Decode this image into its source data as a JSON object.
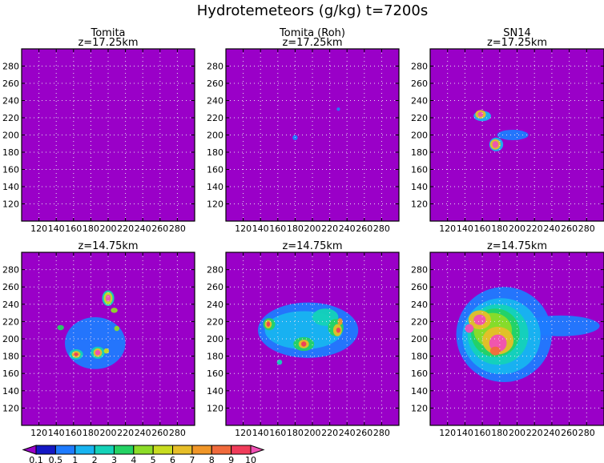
{
  "title": "Hydrotemeteors (g/kg) t=7200s",
  "colors": {
    "background": "#9a00c8",
    "grid": "#e8e0f0",
    "frame": "#000000",
    "text": "#000000"
  },
  "chart_data": [
    {
      "type": "heatmap",
      "scheme": "Tomita",
      "column_title": "Tomita",
      "level": "z=17.25km",
      "xlim": [
        100,
        300
      ],
      "ylim": [
        100,
        300
      ],
      "xticks": [
        120,
        140,
        160,
        180,
        200,
        220,
        240,
        260,
        280
      ],
      "yticks": [
        120,
        140,
        160,
        180,
        200,
        220,
        240,
        260,
        280
      ],
      "grid": true,
      "blobs": []
    },
    {
      "type": "heatmap",
      "scheme": "Tomita (Roh)",
      "column_title": "Tomita (Roh)",
      "level": "z=17.25km",
      "xlim": [
        100,
        300
      ],
      "ylim": [
        100,
        300
      ],
      "xticks": [
        120,
        140,
        160,
        180,
        200,
        220,
        240,
        260,
        280
      ],
      "yticks": [
        120,
        140,
        160,
        180,
        200,
        220,
        240,
        260,
        280
      ],
      "grid": true,
      "blobs": [
        {
          "x": 180,
          "y": 197,
          "rx": 3,
          "ry": 3,
          "value": 0.5
        },
        {
          "x": 230,
          "y": 230,
          "rx": 2,
          "ry": 2,
          "value": 0.5
        }
      ]
    },
    {
      "type": "heatmap",
      "scheme": "SN14",
      "column_title": "SN14",
      "level": "z=17.25km",
      "xlim": [
        100,
        300
      ],
      "ylim": [
        100,
        300
      ],
      "xticks": [
        120,
        140,
        160,
        180,
        200,
        220,
        240,
        260,
        280
      ],
      "yticks": [
        120,
        140,
        160,
        180,
        200,
        220,
        240,
        260,
        280
      ],
      "grid": true,
      "blobs": [
        {
          "x": 160,
          "y": 222,
          "rx": 10,
          "ry": 6,
          "value": 1
        },
        {
          "x": 158,
          "y": 224,
          "rx": 6,
          "ry": 5,
          "value": 6
        },
        {
          "x": 158,
          "y": 224,
          "rx": 3,
          "ry": 3,
          "value": 10
        },
        {
          "x": 176,
          "y": 189,
          "rx": 8,
          "ry": 8,
          "value": 1
        },
        {
          "x": 175,
          "y": 189,
          "rx": 6,
          "ry": 6,
          "value": 6
        },
        {
          "x": 175,
          "y": 189,
          "rx": 3.5,
          "ry": 4,
          "value": 10
        },
        {
          "x": 195,
          "y": 200,
          "rx": 18,
          "ry": 6,
          "value": 0.5
        }
      ]
    },
    {
      "type": "heatmap",
      "scheme": "Tomita",
      "level": "z=14.75km",
      "xlim": [
        100,
        300
      ],
      "ylim": [
        100,
        300
      ],
      "xticks": [
        120,
        140,
        160,
        180,
        200,
        220,
        240,
        260,
        280
      ],
      "yticks": [
        120,
        140,
        160,
        180,
        200,
        220,
        240,
        260,
        280
      ],
      "grid": true,
      "blobs": [
        {
          "x": 185,
          "y": 195,
          "rx": 35,
          "ry": 30,
          "value": 0.5
        },
        {
          "x": 200,
          "y": 247,
          "rx": 7,
          "ry": 9,
          "value": 2
        },
        {
          "x": 200,
          "y": 247,
          "rx": 5,
          "ry": 7,
          "value": 5
        },
        {
          "x": 200,
          "y": 247,
          "rx": 3,
          "ry": 4,
          "value": 10
        },
        {
          "x": 207,
          "y": 233,
          "rx": 4,
          "ry": 3,
          "value": 4
        },
        {
          "x": 210,
          "y": 212,
          "rx": 3,
          "ry": 3,
          "value": 4
        },
        {
          "x": 145,
          "y": 213,
          "rx": 4,
          "ry": 3,
          "value": 3
        },
        {
          "x": 163,
          "y": 182,
          "rx": 8,
          "ry": 6,
          "value": 2
        },
        {
          "x": 163,
          "y": 182,
          "rx": 5,
          "ry": 4,
          "value": 6
        },
        {
          "x": 163,
          "y": 182,
          "rx": 2.5,
          "ry": 2,
          "value": 9
        },
        {
          "x": 188,
          "y": 184,
          "rx": 8,
          "ry": 7,
          "value": 2
        },
        {
          "x": 188,
          "y": 184,
          "rx": 5,
          "ry": 5,
          "value": 6
        },
        {
          "x": 188,
          "y": 184,
          "rx": 3,
          "ry": 3,
          "value": 10
        },
        {
          "x": 198,
          "y": 186,
          "rx": 3,
          "ry": 3,
          "value": 5
        }
      ]
    },
    {
      "type": "heatmap",
      "scheme": "Tomita (Roh)",
      "level": "z=14.75km",
      "xlim": [
        100,
        300
      ],
      "ylim": [
        100,
        300
      ],
      "xticks": [
        120,
        140,
        160,
        180,
        200,
        220,
        240,
        260,
        280
      ],
      "yticks": [
        120,
        140,
        160,
        180,
        200,
        220,
        240,
        260,
        280
      ],
      "grid": true,
      "blobs": [
        {
          "x": 195,
          "y": 210,
          "rx": 58,
          "ry": 32,
          "value": 0.5
        },
        {
          "x": 190,
          "y": 210,
          "rx": 45,
          "ry": 22,
          "value": 1
        },
        {
          "x": 215,
          "y": 225,
          "rx": 15,
          "ry": 10,
          "value": 2
        },
        {
          "x": 150,
          "y": 217,
          "rx": 7,
          "ry": 7,
          "value": 3
        },
        {
          "x": 149,
          "y": 217,
          "rx": 4,
          "ry": 5,
          "value": 6
        },
        {
          "x": 149,
          "y": 217,
          "rx": 2,
          "ry": 3,
          "value": 9
        },
        {
          "x": 190,
          "y": 194,
          "rx": 12,
          "ry": 8,
          "value": 3
        },
        {
          "x": 190,
          "y": 194,
          "rx": 6,
          "ry": 5,
          "value": 6
        },
        {
          "x": 190,
          "y": 194,
          "rx": 3,
          "ry": 3,
          "value": 9
        },
        {
          "x": 227,
          "y": 213,
          "rx": 9,
          "ry": 10,
          "value": 3
        },
        {
          "x": 229,
          "y": 210,
          "rx": 5,
          "ry": 7,
          "value": 6
        },
        {
          "x": 230,
          "y": 210,
          "rx": 2.5,
          "ry": 3,
          "value": 9
        },
        {
          "x": 232,
          "y": 220,
          "rx": 3,
          "ry": 4,
          "value": 7
        },
        {
          "x": 162,
          "y": 173,
          "rx": 3,
          "ry": 3,
          "value": 2
        }
      ]
    },
    {
      "type": "heatmap",
      "scheme": "SN14",
      "level": "z=14.75km",
      "xlim": [
        100,
        300
      ],
      "ylim": [
        100,
        300
      ],
      "xticks": [
        120,
        140,
        160,
        180,
        200,
        220,
        240,
        260,
        280
      ],
      "yticks": [
        120,
        140,
        160,
        180,
        200,
        220,
        240,
        260,
        280
      ],
      "grid": true,
      "blobs": [
        {
          "x": 185,
          "y": 205,
          "rx": 55,
          "ry": 55,
          "value": 0.5
        },
        {
          "x": 250,
          "y": 215,
          "rx": 45,
          "ry": 12,
          "value": 0.5
        },
        {
          "x": 182,
          "y": 203,
          "rx": 45,
          "ry": 44,
          "value": 1
        },
        {
          "x": 178,
          "y": 205,
          "rx": 35,
          "ry": 35,
          "value": 2
        },
        {
          "x": 175,
          "y": 207,
          "rx": 28,
          "ry": 28,
          "value": 3
        },
        {
          "x": 172,
          "y": 210,
          "rx": 22,
          "ry": 20,
          "value": 4
        },
        {
          "x": 157,
          "y": 222,
          "rx": 13,
          "ry": 11,
          "value": 6
        },
        {
          "x": 157,
          "y": 222,
          "rx": 7,
          "ry": 6,
          "value": 10
        },
        {
          "x": 145,
          "y": 212,
          "rx": 5,
          "ry": 5,
          "value": 10
        },
        {
          "x": 178,
          "y": 198,
          "rx": 18,
          "ry": 16,
          "value": 6
        },
        {
          "x": 178,
          "y": 195,
          "rx": 10,
          "ry": 10,
          "value": 10
        },
        {
          "x": 175,
          "y": 186,
          "rx": 6,
          "ry": 5,
          "value": 8
        }
      ]
    }
  ],
  "colorbar": {
    "labels": [
      "0.1",
      "0.5",
      "1",
      "2",
      "3",
      "4",
      "5",
      "6",
      "7",
      "8",
      "9",
      "10"
    ],
    "colors": [
      "#1418c4",
      "#1e7bff",
      "#18b4f0",
      "#14d2b8",
      "#24d264",
      "#8cdc28",
      "#c8dc20",
      "#e6be28",
      "#f09628",
      "#f06a3c",
      "#f03c5a"
    ],
    "low_color": "#9a00c8",
    "high_color": "#f050b4"
  }
}
